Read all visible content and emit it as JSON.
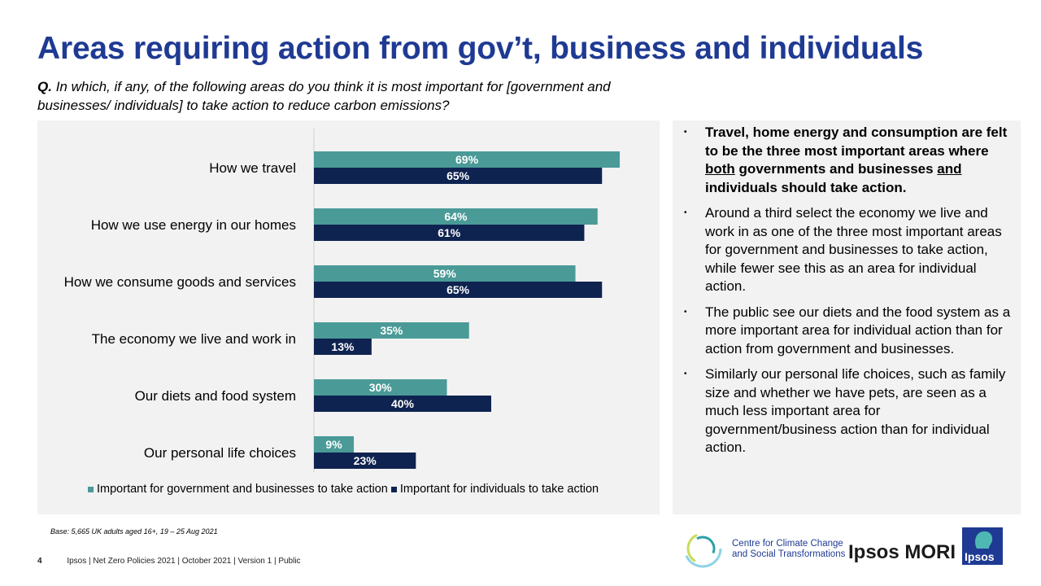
{
  "title": "Areas requiring action from gov’t, business and individuals",
  "question": {
    "prefix": "Q.",
    "text": "In which, if any, of the following areas do you think it is most important for [government and businesses/ individuals] to take action to reduce carbon emissions?"
  },
  "colors": {
    "title": "#1f3a93",
    "series_gov": "#4a9a97",
    "series_ind": "#0f2350",
    "panel": "#f2f2f2"
  },
  "chart_data": {
    "type": "bar",
    "orientation": "horizontal",
    "categories": [
      "How we travel",
      "How we use energy in our homes",
      "How we consume goods and services",
      "The economy we live and work in",
      "Our diets and food system",
      "Our personal life choices"
    ],
    "series": [
      {
        "name": "Important for government and businesses to take action",
        "values": [
          69,
          64,
          59,
          35,
          30,
          9
        ]
      },
      {
        "name": "Important for individuals to take action",
        "values": [
          65,
          61,
          65,
          13,
          40,
          23
        ]
      }
    ],
    "value_suffix": "%",
    "xlim": [
      0,
      75
    ],
    "legend": "bottom"
  },
  "bullets": [
    {
      "id": "b1",
      "bold": true,
      "segments": [
        {
          "text": "Travel, home energy and consumption are felt to be the three most important areas where "
        },
        {
          "text": "both",
          "underline": true
        },
        {
          "text": " governments and businesses "
        },
        {
          "text": "and",
          "underline": true
        },
        {
          "text": " individuals should take action."
        }
      ]
    },
    {
      "id": "b2",
      "bold": false,
      "segments": [
        {
          "text": "Around a third select the economy we live and work in as one of the three most important areas for government and businesses to take action, while fewer see this as an area for individual action."
        }
      ]
    },
    {
      "id": "b3",
      "bold": false,
      "segments": [
        {
          "text": "The public see our diets and the food system as a more important area for individual action than for action from government and businesses."
        }
      ]
    },
    {
      "id": "b4",
      "bold": false,
      "segments": [
        {
          "text": "Similarly our personal life choices, such as family size and whether we have pets, are seen as a much less important area for government/business action than for individual action."
        }
      ]
    }
  ],
  "bullet_marker": "•",
  "base_note": "Base: 5,665 UK adults aged 16+,  19 – 25 Aug 2021",
  "footer": {
    "page": "4",
    "text": "Ipsos | Net Zero Policies 2021 | October 2021 | Version 1 | Public"
  },
  "logos": {
    "cc_line1": "Centre for Climate Change",
    "cc_line2": "and Social Transformations",
    "ipsos_mori": "Ipsos MORI",
    "ipsos": "Ipsos"
  }
}
